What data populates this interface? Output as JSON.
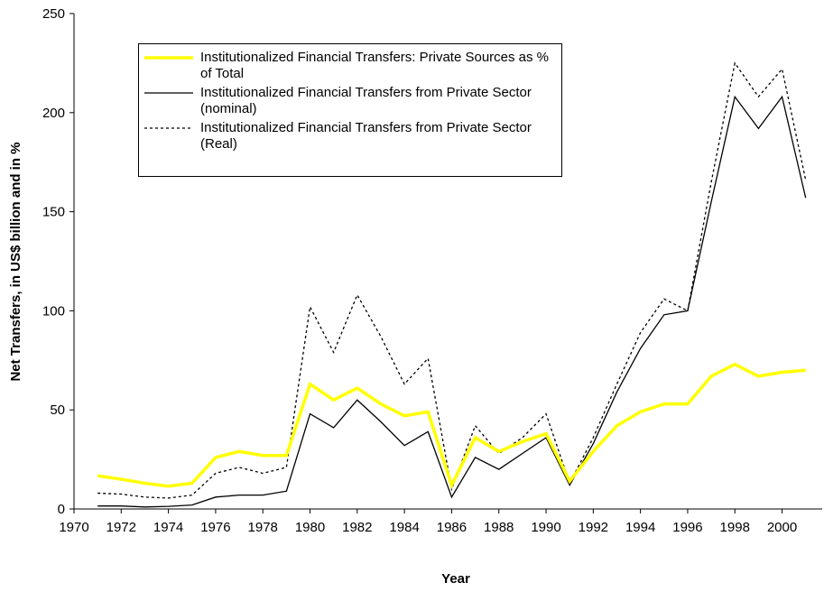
{
  "chart_data": {
    "type": "line",
    "x_label": "Year",
    "y_label": "Net Transfers, in US$ billion and in %",
    "x": [
      1971,
      1972,
      1973,
      1974,
      1975,
      1976,
      1977,
      1978,
      1979,
      1980,
      1981,
      1982,
      1983,
      1984,
      1985,
      1986,
      1987,
      1988,
      1989,
      1990,
      1991,
      1992,
      1993,
      1994,
      1995,
      1996,
      1997,
      1998,
      1999,
      2000,
      2001
    ],
    "series": [
      {
        "name": "Institutionalized Financial Transfers: Private Sources as % of Total",
        "color": "#ffff00",
        "dash": "solid",
        "values": [
          16.8,
          15,
          13,
          11.5,
          13,
          26,
          29,
          27,
          27,
          63,
          55,
          61,
          53,
          47,
          49,
          12,
          36,
          29,
          34,
          38,
          14,
          29,
          42,
          49,
          53,
          53,
          67,
          73,
          67,
          69,
          70
        ]
      },
      {
        "name": "Institutionalized Financial Transfers from Private Sector (nominal)",
        "color": "#000000",
        "dash": "solid",
        "values": [
          1.5,
          1.5,
          1,
          1.3,
          2,
          6,
          7,
          7,
          9,
          48,
          41,
          55,
          44,
          32,
          39,
          6,
          26,
          20,
          28,
          36,
          12,
          33,
          59,
          81,
          98,
          100,
          155,
          208,
          192,
          208,
          157
        ]
      },
      {
        "name": "Institutionalized Financial Transfers from Private Sector (Real)",
        "color": "#000000",
        "dash": "dotted",
        "values": [
          8,
          7.5,
          6,
          5.5,
          7,
          18,
          21,
          18,
          21,
          102,
          79,
          108,
          87,
          63,
          76,
          10,
          42,
          28,
          36,
          48,
          13,
          36,
          63,
          89,
          106,
          100,
          165,
          225,
          208,
          222,
          166
        ]
      }
    ],
    "xlim": [
      1970,
      2001.7
    ],
    "xticks": [
      1970,
      1972,
      1974,
      1976,
      1978,
      1980,
      1982,
      1984,
      1986,
      1988,
      1990,
      1992,
      1994,
      1996,
      1998,
      2000
    ],
    "ylim": [
      0,
      250
    ],
    "yticks": [
      0,
      50,
      100,
      150,
      200,
      250
    ],
    "grid": false
  }
}
